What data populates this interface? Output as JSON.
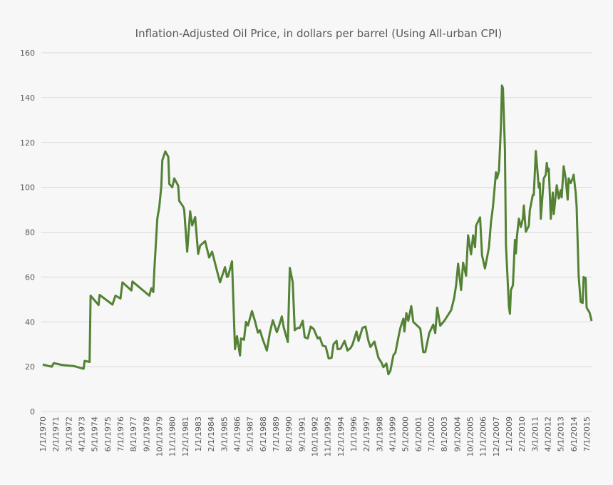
{
  "chart_data": {
    "type": "line",
    "title": "Inflation-Adjusted Oil Price, in dollars per barrel (Using All-urban CPI)",
    "xlabel": "",
    "ylabel": "",
    "ylim": [
      0,
      160
    ],
    "yticks": [
      0,
      20,
      40,
      60,
      80,
      100,
      120,
      140,
      160
    ],
    "grid": true,
    "legend": "none",
    "x_range": [
      "1970-01",
      "2015-12"
    ],
    "xtick_labels": [
      "1/1/1970",
      "2/1/1971",
      "3/1/1972",
      "4/1/1973",
      "5/1/1974",
      "6/1/1975",
      "7/1/1976",
      "8/1/1977",
      "9/1/1978",
      "10/1/1979",
      "11/1/1980",
      "12/1/1981",
      "1/1/1983",
      "2/1/1984",
      "3/1/1985",
      "4/1/1986",
      "5/1/1987",
      "6/1/1988",
      "7/1/1989",
      "8/1/1990",
      "9/1/1991",
      "10/1/1992",
      "11/1/1993",
      "12/1/1994",
      "1/1/1996",
      "2/1/1997",
      "3/1/1998",
      "4/1/1999",
      "5/1/2000",
      "6/1/2001",
      "7/1/2002",
      "8/1/2003",
      "9/1/2004",
      "10/1/2005",
      "11/1/2006",
      "12/1/2007",
      "1/1/2009",
      "2/1/2010",
      "3/1/2011",
      "4/1/2012",
      "5/1/2013",
      "6/1/2014",
      "7/1/2015"
    ],
    "colors": {
      "line": "#548235",
      "grid": "#d9d9d9",
      "text": "#595959",
      "background": "#f7f7f7"
    },
    "series": [
      {
        "points": [
          [
            "1970-01",
            21
          ],
          [
            "1970-07",
            20.3
          ],
          [
            "1970-10",
            20
          ],
          [
            "1970-12",
            21.6
          ],
          [
            "1971-08",
            20.8
          ],
          [
            "1972-08",
            20.3
          ],
          [
            "1973-06",
            19.1
          ],
          [
            "1973-07",
            22.6
          ],
          [
            "1973-12",
            22.1
          ],
          [
            "1974-01",
            51.7
          ],
          [
            "1974-09",
            47.5
          ],
          [
            "1974-10",
            52
          ],
          [
            "1975-11",
            47.7
          ],
          [
            "1976-02",
            51.7
          ],
          [
            "1976-07",
            50.4
          ],
          [
            "1976-09",
            57.6
          ],
          [
            "1977-06",
            54
          ],
          [
            "1977-07",
            58
          ],
          [
            "1978-12",
            51.7
          ],
          [
            "1979-02",
            55
          ],
          [
            "1979-04",
            53.3
          ],
          [
            "1979-05",
            63
          ],
          [
            "1979-08",
            86
          ],
          [
            "1979-10",
            91.4
          ],
          [
            "1979-12",
            100.4
          ],
          [
            "1980-01",
            112
          ],
          [
            "1980-04",
            116
          ],
          [
            "1980-07",
            113.6
          ],
          [
            "1980-08",
            101.5
          ],
          [
            "1980-11",
            100
          ],
          [
            "1981-01",
            104
          ],
          [
            "1981-05",
            100.7
          ],
          [
            "1981-06",
            94
          ],
          [
            "1981-10",
            91.4
          ],
          [
            "1981-11",
            90
          ],
          [
            "1982-02",
            71.3
          ],
          [
            "1982-05",
            89.3
          ],
          [
            "1982-07",
            83
          ],
          [
            "1982-10",
            86.7
          ],
          [
            "1983-01",
            70.3
          ],
          [
            "1983-03",
            74
          ],
          [
            "1983-08",
            76
          ],
          [
            "1983-12",
            68.7
          ],
          [
            "1984-03",
            71.3
          ],
          [
            "1984-06",
            66
          ],
          [
            "1984-11",
            57.6
          ],
          [
            "1985-04",
            64.4
          ],
          [
            "1985-06",
            60
          ],
          [
            "1985-07",
            60.2
          ],
          [
            "1985-11",
            67
          ],
          [
            "1986-02",
            27.8
          ],
          [
            "1986-04",
            33.6
          ],
          [
            "1986-07",
            25
          ],
          [
            "1986-08",
            32.6
          ],
          [
            "1986-11",
            32
          ],
          [
            "1987-01",
            40
          ],
          [
            "1987-03",
            38.4
          ],
          [
            "1987-07",
            44.8
          ],
          [
            "1987-10",
            40.5
          ],
          [
            "1988-01",
            35.2
          ],
          [
            "1988-03",
            36.3
          ],
          [
            "1988-06",
            32
          ],
          [
            "1988-10",
            27.2
          ],
          [
            "1989-01",
            35.2
          ],
          [
            "1989-04",
            40.7
          ],
          [
            "1989-08",
            35.4
          ],
          [
            "1989-10",
            37.9
          ],
          [
            "1990-01",
            42.4
          ],
          [
            "1990-03",
            37.3
          ],
          [
            "1990-07",
            31
          ],
          [
            "1990-09",
            64.1
          ],
          [
            "1990-12",
            57.6
          ],
          [
            "1991-02",
            36.3
          ],
          [
            "1991-05",
            37.3
          ],
          [
            "1991-07",
            37.3
          ],
          [
            "1991-10",
            40.5
          ],
          [
            "1991-12",
            33.1
          ],
          [
            "1992-03",
            32.6
          ],
          [
            "1992-06",
            37.9
          ],
          [
            "1992-09",
            36.8
          ],
          [
            "1993-01",
            32.6
          ],
          [
            "1993-03",
            33.1
          ],
          [
            "1993-06",
            29.4
          ],
          [
            "1993-09",
            29
          ],
          [
            "1993-12",
            23.7
          ],
          [
            "1994-03",
            24
          ],
          [
            "1994-05",
            30.1
          ],
          [
            "1994-08",
            31.5
          ],
          [
            "1994-09",
            27.8
          ],
          [
            "1994-12",
            28
          ],
          [
            "1995-04",
            31.5
          ],
          [
            "1995-07",
            27.2
          ],
          [
            "1995-10",
            28.3
          ],
          [
            "1995-12",
            29.9
          ],
          [
            "1996-04",
            35.7
          ],
          [
            "1996-06",
            31.5
          ],
          [
            "1996-10",
            37.3
          ],
          [
            "1997-01",
            37.9
          ],
          [
            "1997-04",
            31.5
          ],
          [
            "1997-06",
            28.8
          ],
          [
            "1997-10",
            31.2
          ],
          [
            "1998-02",
            24
          ],
          [
            "1998-05",
            21.9
          ],
          [
            "1998-07",
            19.8
          ],
          [
            "1998-10",
            21.4
          ],
          [
            "1998-12",
            16.6
          ],
          [
            "1999-02",
            18.2
          ],
          [
            "1999-05",
            25.1
          ],
          [
            "1999-07",
            26.2
          ],
          [
            "1999-10",
            33.1
          ],
          [
            "1999-12",
            37.3
          ],
          [
            "2000-03",
            41.4
          ],
          [
            "2000-04",
            35.7
          ],
          [
            "2000-06",
            43.9
          ],
          [
            "2000-08",
            40.5
          ],
          [
            "2000-11",
            47
          ],
          [
            "2001-01",
            40
          ],
          [
            "2001-05",
            38.3
          ],
          [
            "2001-08",
            37
          ],
          [
            "2001-11",
            26.5
          ],
          [
            "2002-01",
            26.5
          ],
          [
            "2002-05",
            35
          ],
          [
            "2002-09",
            38.8
          ],
          [
            "2002-11",
            35
          ],
          [
            "2003-01",
            46.3
          ],
          [
            "2003-04",
            38.3
          ],
          [
            "2003-08",
            40.4
          ],
          [
            "2004-03",
            45.2
          ],
          [
            "2004-06",
            50.5
          ],
          [
            "2004-08",
            56.3
          ],
          [
            "2004-10",
            65.9
          ],
          [
            "2005-01",
            54.2
          ],
          [
            "2005-03",
            66.4
          ],
          [
            "2005-06",
            60.6
          ],
          [
            "2005-08",
            78.6
          ],
          [
            "2005-11",
            70.1
          ],
          [
            "2006-01",
            78.6
          ],
          [
            "2006-03",
            73.3
          ],
          [
            "2006-04",
            82.9
          ],
          [
            "2006-08",
            86.6
          ],
          [
            "2006-10",
            69.6
          ],
          [
            "2007-01",
            63.8
          ],
          [
            "2007-05",
            73.3
          ],
          [
            "2007-07",
            84.4
          ],
          [
            "2007-09",
            91.3
          ],
          [
            "2007-12",
            106.7
          ],
          [
            "2008-01",
            104
          ],
          [
            "2008-03",
            107.2
          ],
          [
            "2008-05",
            127.4
          ],
          [
            "2008-06",
            145.4
          ],
          [
            "2008-07",
            144.3
          ],
          [
            "2008-09",
            116.8
          ],
          [
            "2008-10",
            74.4
          ],
          [
            "2009-01",
            46.8
          ],
          [
            "2009-02",
            43.6
          ],
          [
            "2009-03",
            54.2
          ],
          [
            "2009-05",
            56.3
          ],
          [
            "2009-07",
            76.5
          ],
          [
            "2009-08",
            70.6
          ],
          [
            "2009-09",
            78
          ],
          [
            "2009-11",
            86
          ],
          [
            "2010-01",
            82.3
          ],
          [
            "2010-03",
            86
          ],
          [
            "2010-04",
            91.9
          ],
          [
            "2010-06",
            80.2
          ],
          [
            "2010-09",
            82.8
          ],
          [
            "2010-10",
            89.7
          ],
          [
            "2011-01",
            96.6
          ],
          [
            "2011-02",
            96.6
          ],
          [
            "2011-04",
            116.2
          ],
          [
            "2011-07",
            99.8
          ],
          [
            "2011-08",
            101.9
          ],
          [
            "2011-09",
            86
          ],
          [
            "2011-12",
            104
          ],
          [
            "2012-02",
            105.6
          ],
          [
            "2012-03",
            110.9
          ],
          [
            "2012-04",
            107.2
          ],
          [
            "2012-05",
            108.3
          ],
          [
            "2012-07",
            86
          ],
          [
            "2012-09",
            97.7
          ],
          [
            "2012-10",
            88.1
          ],
          [
            "2013-01",
            100.9
          ],
          [
            "2013-03",
            95
          ],
          [
            "2013-05",
            98.7
          ],
          [
            "2013-06",
            95.5
          ],
          [
            "2013-08",
            109.4
          ],
          [
            "2013-10",
            104
          ],
          [
            "2013-12",
            94.5
          ],
          [
            "2014-01",
            104
          ],
          [
            "2014-03",
            101.9
          ],
          [
            "2014-05",
            104
          ],
          [
            "2014-06",
            105.6
          ],
          [
            "2014-08",
            97.7
          ],
          [
            "2014-09",
            91.3
          ],
          [
            "2014-11",
            60.6
          ],
          [
            "2015-01",
            48.9
          ],
          [
            "2015-03",
            48.4
          ],
          [
            "2015-04",
            60
          ],
          [
            "2015-06",
            59.5
          ],
          [
            "2015-07",
            46.3
          ],
          [
            "2015-10",
            44.1
          ],
          [
            "2015-12",
            40.4
          ]
        ]
      }
    ]
  }
}
